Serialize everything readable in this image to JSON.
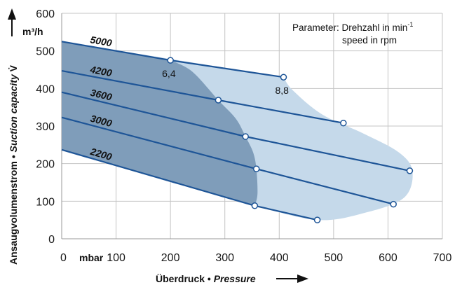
{
  "chart_data": {
    "type": "line",
    "xlabel": "Überdruck",
    "xlabel_en": "Pressure",
    "x_unit": "mbar",
    "ylabel": "Ansaugvolumenstrom",
    "ylabel_en": "Suction capacity",
    "y_symbol": "V̇",
    "y_unit": "m³/h",
    "xlim": [
      0,
      700
    ],
    "ylim": [
      0,
      600
    ],
    "x_ticks": [
      "0",
      "100",
      "200",
      "300",
      "400",
      "500",
      "600",
      "700"
    ],
    "y_ticks": [
      "0",
      "100",
      "200",
      "300",
      "400",
      "500",
      "600"
    ],
    "grid": true,
    "parameter_line1": "Parameter: Drehzahl in min",
    "parameter_sup": "-1",
    "parameter_line2": "speed in rpm",
    "series": [
      {
        "name": "5000",
        "x": [
          0,
          200,
          408
        ],
        "y": [
          525,
          475,
          430
        ]
      },
      {
        "name": "4200",
        "x": [
          0,
          288,
          518
        ],
        "y": [
          447,
          369,
          308
        ]
      },
      {
        "name": "3600",
        "x": [
          0,
          338,
          640
        ],
        "y": [
          390,
          272,
          181
        ]
      },
      {
        "name": "3000",
        "x": [
          0,
          358,
          610
        ],
        "y": [
          323,
          186,
          92
        ]
      },
      {
        "name": "2200",
        "x": [
          0,
          355,
          470
        ],
        "y": [
          237,
          88,
          50
        ]
      }
    ],
    "point_labels": [
      {
        "text": "6,4",
        "x": 200,
        "y": 475
      },
      {
        "text": "8,8",
        "x": 408,
        "y": 430
      }
    ],
    "region_outer": [
      [
        0,
        525
      ],
      [
        408,
        430
      ],
      [
        425,
        395
      ],
      [
        480,
        330
      ],
      [
        555,
        280
      ],
      [
        620,
        230
      ],
      [
        645,
        180
      ],
      [
        630,
        110
      ],
      [
        560,
        70
      ],
      [
        470,
        50
      ],
      [
        355,
        88
      ],
      [
        0,
        237
      ]
    ],
    "region_inner": [
      [
        0,
        525
      ],
      [
        200,
        475
      ],
      [
        240,
        445
      ],
      [
        288,
        369
      ],
      [
        320,
        320
      ],
      [
        338,
        272
      ],
      [
        352,
        230
      ],
      [
        358,
        186
      ],
      [
        360,
        120
      ],
      [
        355,
        88
      ],
      [
        0,
        237
      ]
    ],
    "colors": {
      "line": "#1e5597",
      "outer_fill": "#c5d9ea",
      "inner_fill": "#7f9dba",
      "grid": "#c4c4c4"
    }
  }
}
